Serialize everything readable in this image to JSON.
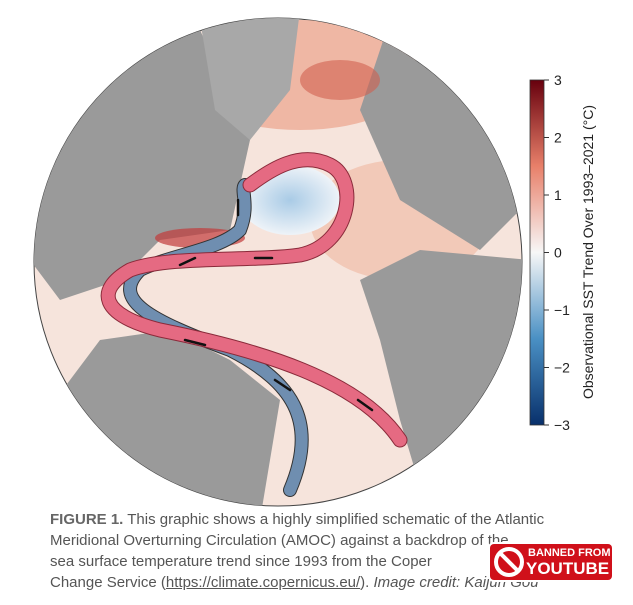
{
  "figure": {
    "colorbar": {
      "label": "Observational SST Trend Over 1993–2021 (°C)",
      "lim": [
        -3,
        3
      ],
      "ticks": [
        {
          "value": -3,
          "label": "−3"
        },
        {
          "value": -2,
          "label": "−2"
        },
        {
          "value": -1,
          "label": "−1"
        },
        0,
        1,
        2,
        3
      ],
      "colors": [
        "#08306b",
        "#4a90c4",
        "#f7f7f7",
        "#e8806a",
        "#67000d"
      ]
    },
    "caption": {
      "label": "FIGURE 1.",
      "lines": [
        "This graphic shows a highly simplified schematic of the Atlantic",
        "Meridional Overturning Circulation (AMOC) against a backdrop of the",
        "sea surface temperature trend since 1993 from the Coper"
      ],
      "line4_start": "Change Service (",
      "link": "https://climate.copernicus.eu/",
      "line4_end": ").",
      "credit": "Image credit: Kaijun Gou"
    },
    "badge": {
      "top": "BANNED FROM",
      "bottom": "YOUTUBE"
    }
  }
}
